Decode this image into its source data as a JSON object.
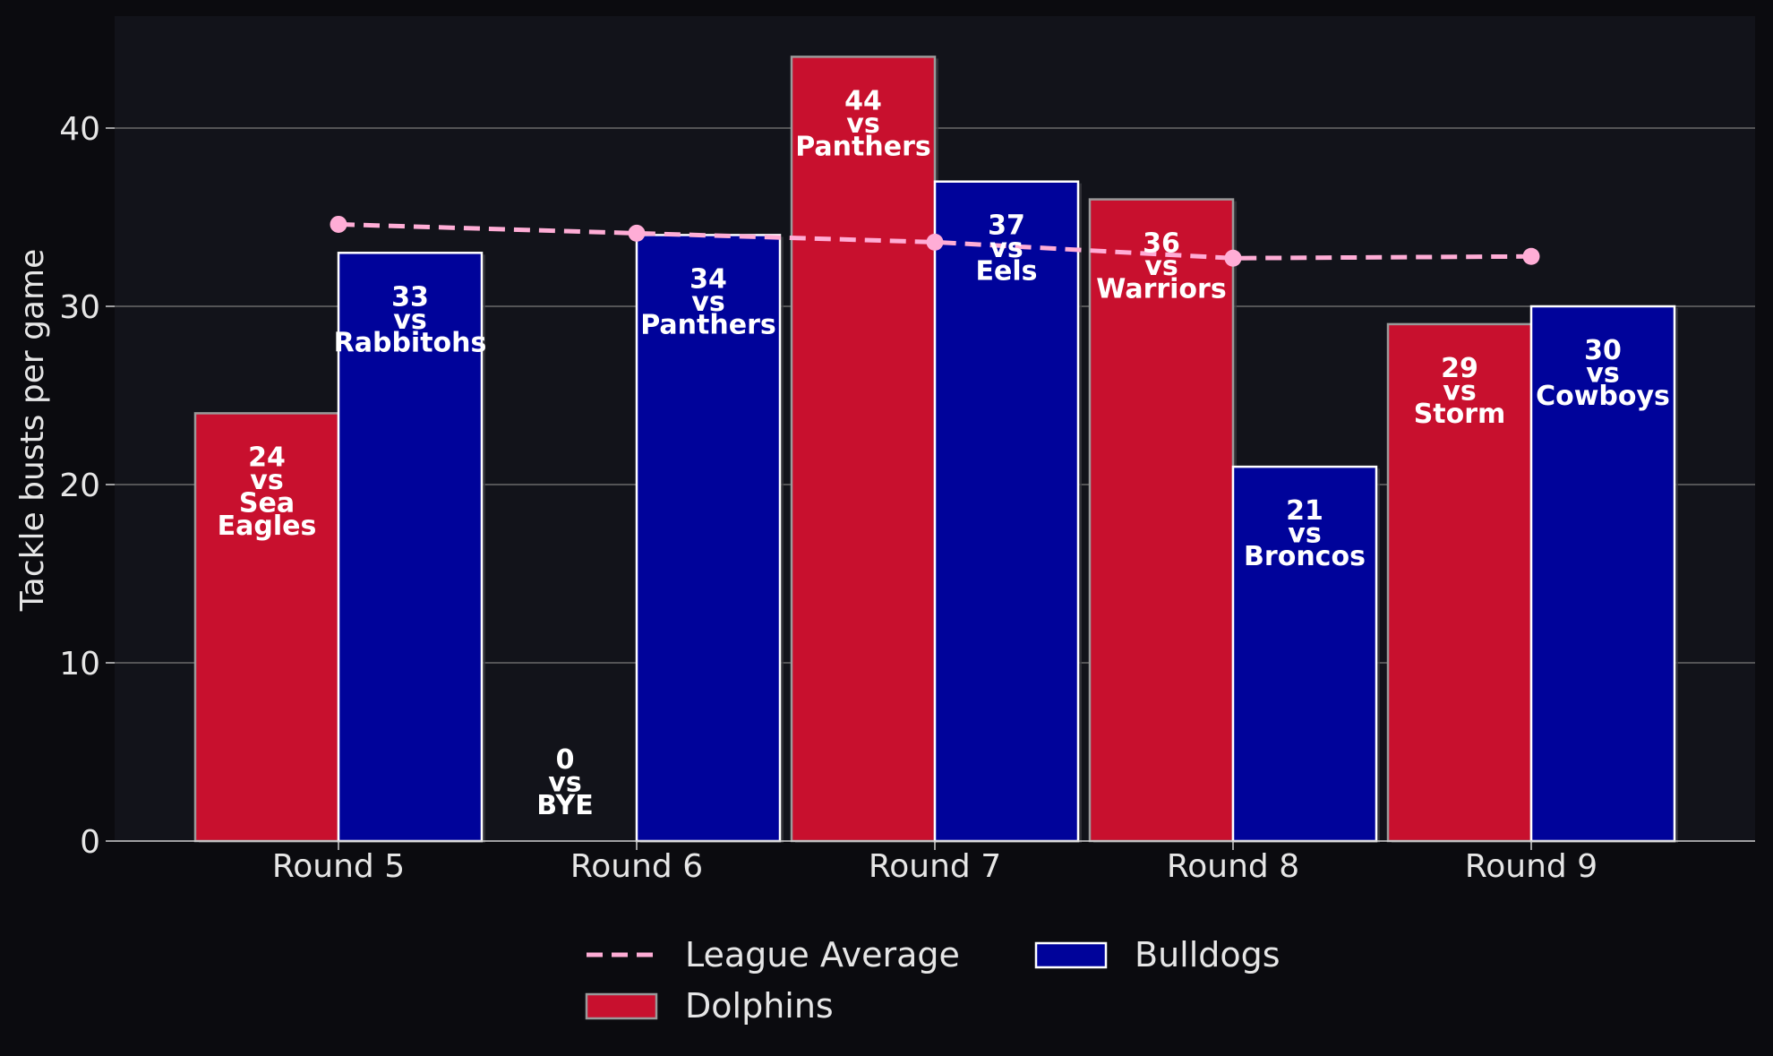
{
  "chart_data": {
    "type": "bar",
    "title": "",
    "xlabel": "",
    "ylabel": "Tackle busts per game",
    "ylim": [
      0,
      46
    ],
    "yticks": [
      0,
      10,
      20,
      30,
      40
    ],
    "grid": true,
    "legend_position": "bottom-center",
    "categories": [
      "Round 5",
      "Round 6",
      "Round 7",
      "Round 8",
      "Round 9"
    ],
    "series": [
      {
        "name": "Dolphins",
        "color": "#c8102e",
        "values": [
          24,
          0,
          44,
          36,
          29
        ],
        "opponents": [
          "Sea Eagles",
          "BYE",
          "Panthers",
          "Warriors",
          "Storm"
        ],
        "labels": [
          [
            "24",
            "vs",
            "Sea",
            "Eagles"
          ],
          [
            "0",
            "vs",
            "BYE"
          ],
          [
            "44",
            "vs",
            "Panthers"
          ],
          [
            "36",
            "vs",
            "Warriors"
          ],
          [
            "29",
            "vs",
            "Storm"
          ]
        ]
      },
      {
        "name": "Bulldogs",
        "color": "#00039a",
        "values": [
          33,
          34,
          37,
          21,
          30
        ],
        "opponents": [
          "Rabbitohs",
          "Panthers",
          "Eels",
          "Broncos",
          "Cowboys"
        ],
        "labels": [
          [
            "33",
            "vs",
            "Rabbitohs"
          ],
          [
            "34",
            "vs",
            "Panthers"
          ],
          [
            "37",
            "vs",
            "Eels"
          ],
          [
            "21",
            "vs",
            "Broncos"
          ],
          [
            "30",
            "vs",
            "Cowboys"
          ]
        ]
      }
    ],
    "league_average": {
      "name": "League Average",
      "color": "#ffadd6",
      "values": [
        34.6,
        34.1,
        33.6,
        32.7,
        32.8
      ]
    },
    "legend": [
      {
        "name": "League Average",
        "kind": "line"
      },
      {
        "name": "Dolphins",
        "kind": "bar"
      },
      {
        "name": "Bulldogs",
        "kind": "bar"
      }
    ]
  },
  "colors": {
    "figure_background": "#0b0b0f",
    "plot_background": "#12131a",
    "grid": "#6b6b6b",
    "text": "#e6e6e6"
  }
}
